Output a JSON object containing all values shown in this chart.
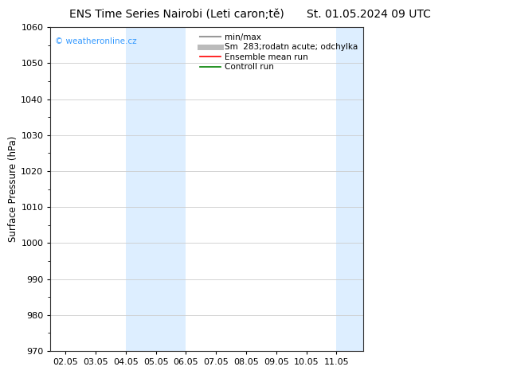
{
  "title_left": "ENS Time Series Nairobi (Leti caron;tě)",
  "title_right": "St. 01.05.2024 09 UTC",
  "ylabel": "Surface Pressure (hPa)",
  "ylim": [
    970,
    1060
  ],
  "yticks": [
    970,
    980,
    990,
    1000,
    1010,
    1020,
    1030,
    1040,
    1050,
    1060
  ],
  "xtick_labels": [
    "02.05",
    "03.05",
    "04.05",
    "05.05",
    "06.05",
    "07.05",
    "08.05",
    "09.05",
    "10.05",
    "11.05"
  ],
  "xtick_positions": [
    0,
    1,
    2,
    3,
    4,
    5,
    6,
    7,
    8,
    9
  ],
  "xlim": [
    -0.5,
    9.9
  ],
  "shaded_regions": [
    {
      "xstart": 2.0,
      "xend": 4.0,
      "color": "#ddeeff"
    },
    {
      "xstart": 9.0,
      "xend": 9.9,
      "color": "#ddeeff"
    }
  ],
  "watermark_text": "© weatheronline.cz",
  "watermark_color": "#3399ff",
  "legend_entries": [
    {
      "label": "min/max",
      "color": "#999999",
      "lw": 1.5,
      "style": "-"
    },
    {
      "label": "Sm  283;rodatn acute; odchylka",
      "color": "#bbbbbb",
      "lw": 5,
      "style": "-"
    },
    {
      "label": "Ensemble mean run",
      "color": "red",
      "lw": 1.2,
      "style": "-"
    },
    {
      "label": "Controll run",
      "color": "green",
      "lw": 1.2,
      "style": "-"
    }
  ],
  "bg_color": "#ffffff",
  "grid_color": "#cccccc",
  "axis_color": "#555555",
  "title_fontsize": 10,
  "label_fontsize": 8.5,
  "tick_fontsize": 8,
  "legend_fontsize": 7.5
}
